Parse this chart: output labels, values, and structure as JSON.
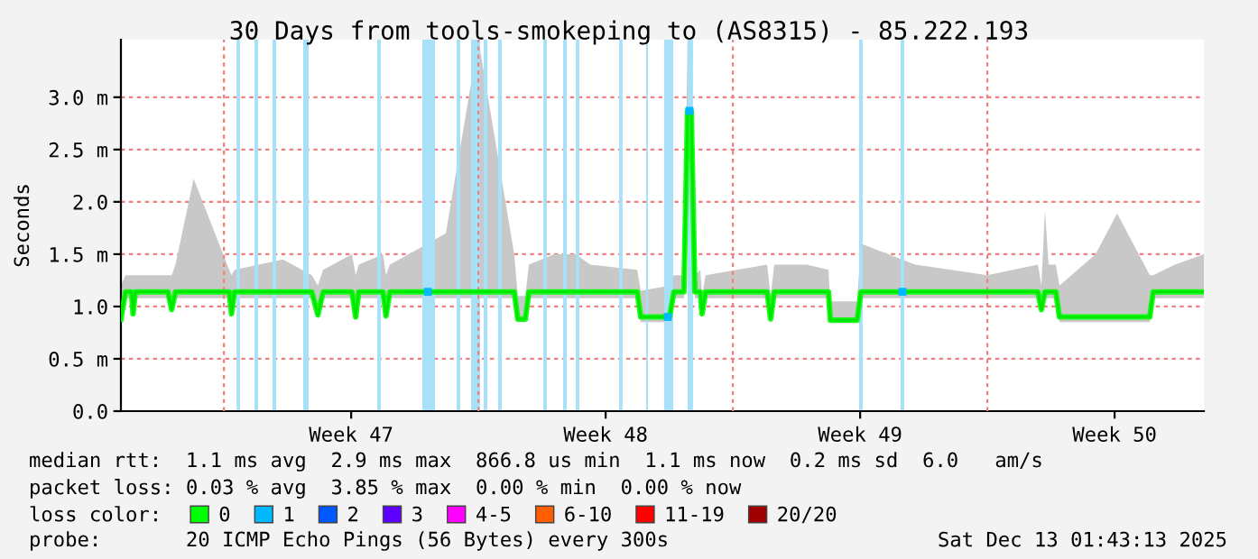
{
  "chart_data": {
    "type": "line",
    "title": "30 Days from tools-smokeping to (AS8315) - 85.222.193",
    "ylabel": "Seconds",
    "xlim": [
      "2025-11-14T04:00",
      "2025-12-13T22:55"
    ],
    "xticks": [
      {
        "value": "2025-11-20T12:00",
        "label": "Week 47"
      },
      {
        "value": "2025-11-27T12:00",
        "label": "Week 48"
      },
      {
        "value": "2025-12-04T12:00",
        "label": "Week 49"
      },
      {
        "value": "2025-12-11T12:00",
        "label": "Week 50"
      }
    ],
    "ref_lines": [
      {
        "axis": "x",
        "value": "2025-11-17T00:00",
        "color": "#f08080",
        "line_style": "dashed"
      },
      {
        "axis": "x",
        "value": "2025-11-24T00:00",
        "color": "#f08080",
        "line_style": "dashed"
      },
      {
        "axis": "x",
        "value": "2025-12-01T00:00",
        "color": "#f08080",
        "line_style": "dashed"
      },
      {
        "axis": "x",
        "value": "2025-12-08T00:00",
        "color": "#f08080",
        "line_style": "dashed"
      }
    ],
    "ylim": [
      0,
      3.55
    ],
    "yticks": [
      {
        "value": 0,
        "label": "0.0"
      },
      {
        "value": 0.5,
        "label": "0.5 m"
      },
      {
        "value": 1.0,
        "label": "1.0"
      },
      {
        "value": 1.5,
        "label": "1.5 m"
      },
      {
        "value": 2.0,
        "label": "2.0"
      },
      {
        "value": 2.5,
        "label": "2.5 m"
      },
      {
        "value": 3.0,
        "label": "3.0 m"
      }
    ],
    "grid": "y",
    "legend": "bottom",
    "legend_title": "loss color:",
    "series": [
      {
        "name": "0",
        "color": "#00ff00",
        "type": "line",
        "x": [
          "2025-11-14T04:00",
          "2025-11-14T07:00",
          "2025-11-14T11:00",
          "2025-11-14T12:00",
          "2025-11-14T13:30",
          "2025-11-15T11:00",
          "2025-11-15T13:30",
          "2025-11-15T16:00",
          "2025-11-16T04:00",
          "2025-11-17T03:30",
          "2025-11-17T05:00",
          "2025-11-17T07:00",
          "2025-11-18T15:00",
          "2025-11-19T10:00",
          "2025-11-19T14:00",
          "2025-11-19T17:30",
          "2025-11-20T12:30",
          "2025-11-20T15:00",
          "2025-11-20T17:00",
          "2025-11-21T09:00",
          "2025-11-21T11:00",
          "2025-11-21T13:30",
          "2025-11-22T14:30",
          "2025-11-23T02:30",
          "2025-11-24T00:00",
          "2025-11-24T23:40",
          "2025-11-25T02:00",
          "2025-11-25T07:00",
          "2025-11-25T09:20",
          "2025-11-26T02:00",
          "2025-11-26T16:20",
          "2025-11-27T01:50",
          "2025-11-28T08:50",
          "2025-11-28T11:10",
          "2025-11-29T06:10",
          "2025-11-29T09:05",
          "2025-11-29T15:40",
          "2025-11-29T18:05",
          "2025-11-29T20:30",
          "2025-11-29T22:55",
          "2025-11-30T02:30",
          "2025-11-30T03:40",
          "2025-11-30T06:00",
          "2025-12-01T22:35",
          "2025-12-02T00:55",
          "2025-12-02T03:20",
          "2025-12-03T00:50",
          "2025-12-03T15:05",
          "2025-12-03T16:20",
          "2025-12-04T10:05",
          "2025-12-04T12:30",
          "2025-12-06T00:20",
          "2025-12-07T00:05",
          "2025-12-07T23:55",
          "2025-12-09T09:20",
          "2025-12-09T11:40",
          "2025-12-09T14:00",
          "2025-12-09T16:25",
          "2025-12-09T21:10",
          "2025-12-09T23:35",
          "2025-12-10T23:25",
          "2025-12-11T13:40",
          "2025-12-12T11:10",
          "2025-12-12T13:30",
          "2025-12-13T03:50",
          "2025-12-13T22:55"
        ],
        "values": [
          0.88,
          1.14,
          1.14,
          0.93,
          1.14,
          1.14,
          0.97,
          1.14,
          1.14,
          1.14,
          0.93,
          1.14,
          1.14,
          1.14,
          0.92,
          1.14,
          1.14,
          0.9,
          1.14,
          1.14,
          0.91,
          1.14,
          1.14,
          1.14,
          1.14,
          1.14,
          0.88,
          0.88,
          1.14,
          1.14,
          1.14,
          1.14,
          1.14,
          0.9,
          0.9,
          1.14,
          1.14,
          2.87,
          2.87,
          1.14,
          1.14,
          0.93,
          1.14,
          1.14,
          0.88,
          1.14,
          1.14,
          1.14,
          0.87,
          0.87,
          1.14,
          1.14,
          1.14,
          1.14,
          1.14,
          0.97,
          1.14,
          1.14,
          1.14,
          0.9,
          0.9,
          0.9,
          0.9,
          1.14,
          1.14,
          1.14
        ],
        "lower": [
          0.85,
          1.08,
          1.08,
          0.9,
          1.08,
          1.08,
          0.94,
          1.08,
          1.08,
          1.08,
          0.9,
          1.08,
          1.08,
          1.08,
          0.88,
          1.08,
          1.08,
          0.86,
          1.08,
          1.08,
          0.88,
          1.08,
          1.08,
          1.08,
          1.08,
          1.08,
          0.85,
          0.85,
          1.08,
          1.08,
          1.08,
          1.08,
          1.08,
          0.85,
          0.85,
          1.08,
          1.08,
          2.8,
          2.8,
          1.08,
          1.08,
          0.9,
          1.08,
          1.08,
          0.85,
          1.08,
          1.08,
          1.08,
          0.84,
          0.84,
          1.08,
          1.08,
          1.08,
          1.08,
          1.08,
          0.94,
          1.08,
          1.08,
          1.08,
          0.85,
          0.85,
          0.85,
          0.85,
          1.08,
          1.08,
          1.08
        ],
        "upper": [
          1.2,
          1.3,
          1.3,
          1.3,
          1.3,
          1.3,
          1.3,
          1.4,
          2.22,
          1.35,
          1.3,
          1.35,
          1.45,
          1.3,
          1.2,
          1.35,
          1.5,
          1.3,
          1.4,
          1.5,
          1.3,
          1.4,
          1.6,
          1.7,
          3.55,
          1.5,
          1.1,
          1.1,
          1.4,
          1.5,
          1.5,
          1.4,
          1.35,
          1.15,
          1.2,
          1.3,
          1.3,
          3.55,
          3.55,
          1.3,
          1.35,
          1.1,
          1.3,
          1.4,
          1.1,
          1.4,
          1.4,
          1.35,
          1.05,
          1.05,
          1.6,
          1.4,
          1.35,
          1.3,
          1.4,
          1.2,
          1.92,
          1.4,
          1.4,
          1.2,
          1.5,
          1.89,
          1.3,
          1.3,
          1.4,
          1.5
        ]
      },
      {
        "name": "1",
        "color": "#00b8ff",
        "type": "scatter",
        "x": [
          "2025-11-22T14:35",
          "2025-11-29T05:00",
          "2025-11-29T19:20",
          "2025-12-05T15:55"
        ],
        "values": [
          1.14,
          0.9,
          2.87,
          1.14
        ]
      },
      {
        "name": "2",
        "color": "#0059ff",
        "type": "scatter"
      },
      {
        "name": "3",
        "color": "#5e00ff",
        "type": "scatter"
      },
      {
        "name": "4-5",
        "color": "#ff00ff",
        "type": "scatter"
      },
      {
        "name": "6-10",
        "color": "#ff5e00",
        "type": "scatter"
      },
      {
        "name": "11-19",
        "color": "#ff0000",
        "type": "scatter"
      },
      {
        "name": "20/20",
        "color": "#a10000",
        "type": "scatter"
      }
    ],
    "bands": [
      {
        "axis": "x",
        "from": "2025-11-17T08:20",
        "to": "2025-11-17T10:35",
        "color": "#a8e0f8"
      },
      {
        "axis": "x",
        "from": "2025-11-17T20:10",
        "to": "2025-11-17T22:35",
        "color": "#a8e0f8"
      },
      {
        "axis": "x",
        "from": "2025-11-18T08:05",
        "to": "2025-11-18T10:30",
        "color": "#a8e0f8"
      },
      {
        "axis": "x",
        "from": "2025-11-19T04:20",
        "to": "2025-11-19T07:55",
        "color": "#a8e0f8"
      },
      {
        "axis": "x",
        "from": "2025-11-21T05:10",
        "to": "2025-11-21T07:35",
        "color": "#a8e0f8"
      },
      {
        "axis": "x",
        "from": "2025-11-22T11:00",
        "to": "2025-11-22T19:20",
        "color": "#a8e0f8"
      },
      {
        "axis": "x",
        "from": "2025-11-23T09:35",
        "to": "2025-11-23T12:00",
        "color": "#a8e0f8"
      },
      {
        "axis": "x",
        "from": "2025-11-23T19:10",
        "to": "2025-11-24T01:05",
        "color": "#a8e0f8"
      },
      {
        "axis": "x",
        "from": "2025-11-24T03:30",
        "to": "2025-11-24T05:55",
        "color": "#a8e0f8"
      },
      {
        "axis": "x",
        "from": "2025-11-24T13:00",
        "to": "2025-11-24T15:25",
        "color": "#a8e0f8"
      },
      {
        "axis": "x",
        "from": "2025-11-25T18:50",
        "to": "2025-11-25T21:10",
        "color": "#a8e0f8"
      },
      {
        "axis": "x",
        "from": "2025-11-26T07:55",
        "to": "2025-11-26T10:20",
        "color": "#a8e0f8"
      },
      {
        "axis": "x",
        "from": "2025-11-26T16:20",
        "to": "2025-11-26T18:35",
        "color": "#a8e0f8"
      },
      {
        "axis": "x",
        "from": "2025-11-27T20:55",
        "to": "2025-11-27T23:10",
        "color": "#a8e0f8"
      },
      {
        "axis": "x",
        "from": "2025-11-28T14:40",
        "to": "2025-11-28T15:55",
        "color": "#a8e0f8"
      },
      {
        "axis": "x",
        "from": "2025-11-29T02:35",
        "to": "2025-11-29T08:35",
        "color": "#a8e0f8"
      },
      {
        "axis": "x",
        "from": "2025-11-29T18:05",
        "to": "2025-11-29T21:40",
        "color": "#a8e0f8"
      },
      {
        "axis": "x",
        "from": "2025-12-04T11:20",
        "to": "2025-12-04T13:40",
        "color": "#a8e0f8"
      },
      {
        "axis": "x",
        "from": "2025-12-05T14:40",
        "to": "2025-12-05T17:05",
        "color": "#a8e0f8"
      }
    ],
    "annotations": [
      "median rtt:  1.1 ms avg  2.9 ms max  866.8 us min  1.1 ms now  0.2 ms sd  6.0   am/s",
      "packet loss: 0.03 % avg  3.85 % max  0.00 % min  0.00 % now",
      "probe:       20 ICMP Echo Pings (56 Bytes) every 300s",
      "Sat Dec 13 01:43:13 2025"
    ]
  }
}
